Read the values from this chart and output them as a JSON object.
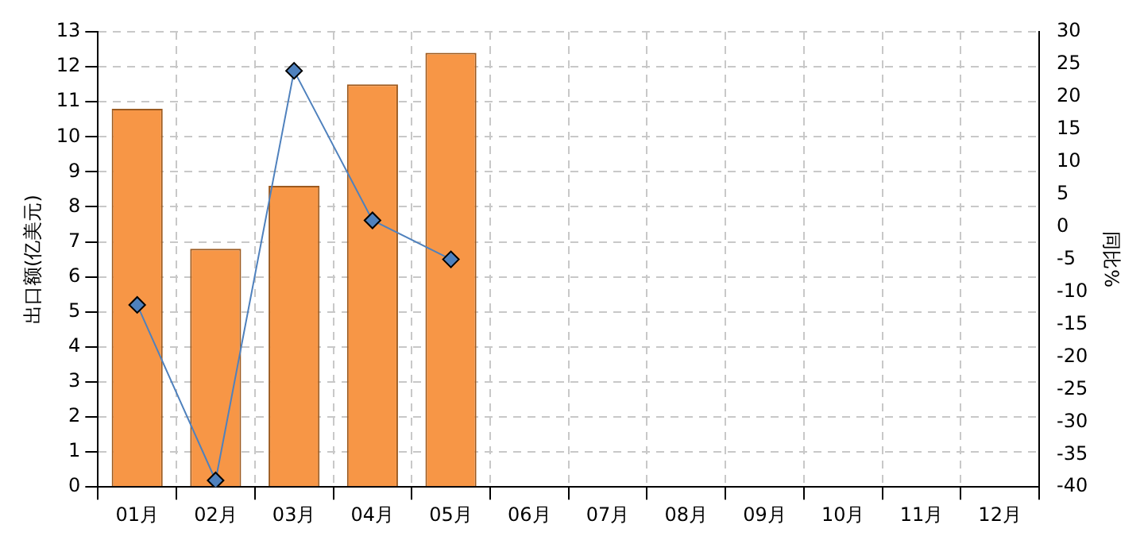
{
  "chart_data": {
    "type": "bar",
    "ylabel": "出口额(亿美元)",
    "y2label": "同比%",
    "categories": [
      "01月",
      "02月",
      "03月",
      "04月",
      "05月",
      "06月",
      "07月",
      "08月",
      "09月",
      "10月",
      "11月",
      "12月"
    ],
    "series": [
      {
        "color": "#f79646",
        "values": [
          10.8,
          6.8,
          8.6,
          11.5,
          12.4,
          null,
          null,
          null,
          null,
          null,
          null,
          null
        ]
      },
      {
        "type": "line",
        "axis": "y2",
        "color": "#4f81bd",
        "marker": "diamond",
        "values": [
          -12,
          -39,
          24,
          1,
          -5,
          null,
          null,
          null,
          null,
          null,
          null,
          null
        ]
      }
    ],
    "ylim": [
      0,
      13
    ],
    "yticks": [
      0,
      1,
      2,
      3,
      4,
      5,
      6,
      7,
      8,
      9,
      10,
      11,
      12,
      13
    ],
    "y2lim": [
      -40,
      30
    ],
    "y2ticks": [
      -40,
      -35,
      -30,
      -25,
      -20,
      -15,
      -10,
      -5,
      0,
      5,
      10,
      15,
      20,
      25,
      30
    ],
    "grid": true,
    "legend": false
  }
}
